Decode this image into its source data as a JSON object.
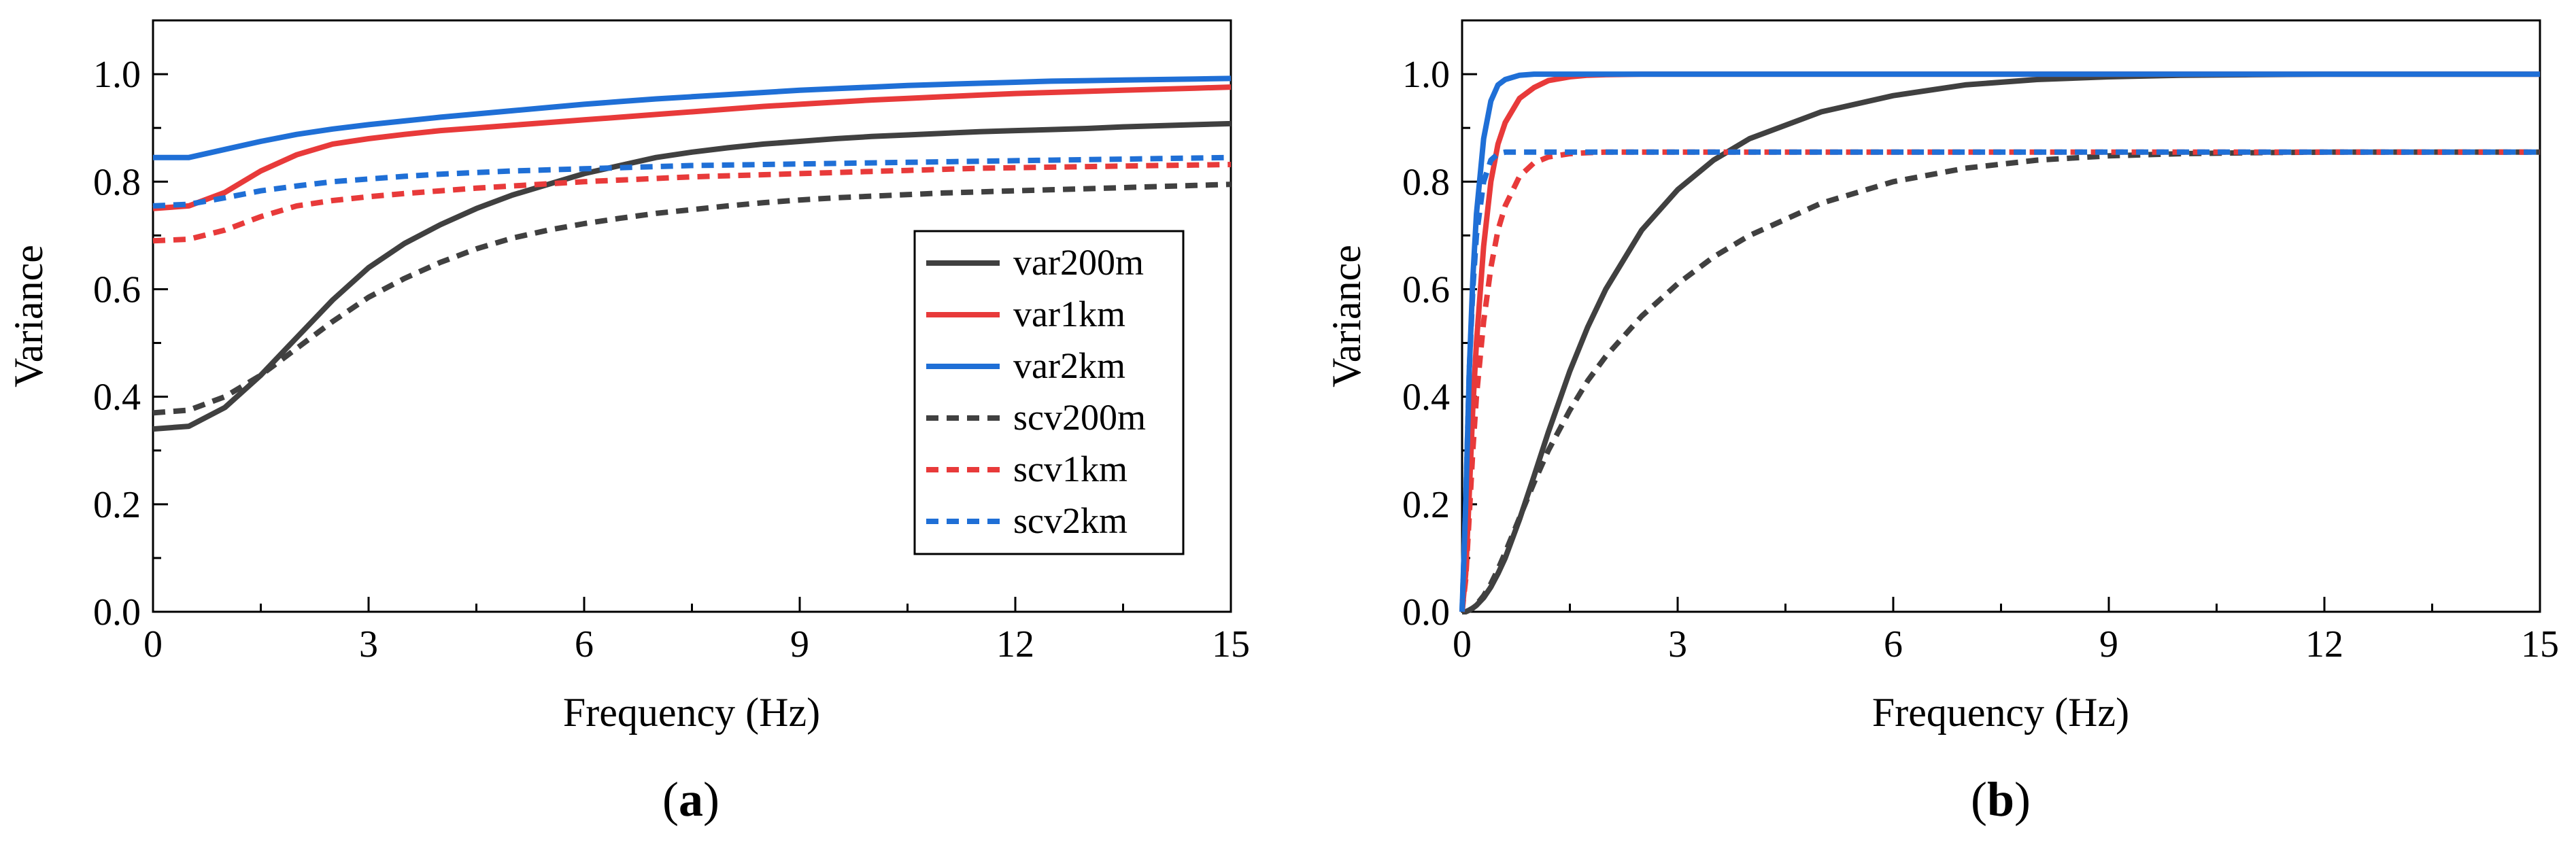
{
  "chart_data": [
    {
      "type": "line",
      "panel": "a",
      "caption_open": "(",
      "caption_label": "a",
      "caption_close": ")",
      "xlabel": "Frequency (Hz)",
      "ylabel": "Variance",
      "xlim": [
        0,
        15
      ],
      "ylim": [
        0,
        1.1
      ],
      "xticks": [
        0,
        3,
        6,
        9,
        12,
        15
      ],
      "xtick_labels": [
        "0",
        "3",
        "6",
        "9",
        "12",
        "15"
      ],
      "yticks": [
        0.0,
        0.2,
        0.4,
        0.6,
        0.8,
        1.0
      ],
      "ytick_labels": [
        "0.0",
        "0.2",
        "0.4",
        "0.6",
        "0.8",
        "1.0"
      ],
      "grid": false,
      "legend_position": "right",
      "x": [
        0,
        0.5,
        1,
        1.5,
        2,
        2.5,
        3,
        3.5,
        4,
        4.5,
        5,
        5.5,
        6,
        6.5,
        7,
        7.5,
        8,
        8.5,
        9,
        9.5,
        10,
        10.5,
        11,
        11.5,
        12,
        12.5,
        13,
        13.5,
        14,
        14.5,
        15
      ],
      "series": [
        {
          "name": "var200m",
          "color": "#404040",
          "dash": "solid",
          "values": [
            0.34,
            0.345,
            0.38,
            0.44,
            0.51,
            0.58,
            0.64,
            0.685,
            0.72,
            0.75,
            0.775,
            0.795,
            0.815,
            0.83,
            0.845,
            0.855,
            0.863,
            0.87,
            0.875,
            0.88,
            0.884,
            0.887,
            0.89,
            0.893,
            0.895,
            0.897,
            0.899,
            0.902,
            0.904,
            0.906,
            0.908
          ]
        },
        {
          "name": "var1km",
          "color": "#e83a3a",
          "dash": "solid",
          "values": [
            0.75,
            0.755,
            0.78,
            0.82,
            0.85,
            0.87,
            0.88,
            0.888,
            0.895,
            0.9,
            0.905,
            0.91,
            0.915,
            0.92,
            0.925,
            0.93,
            0.935,
            0.94,
            0.944,
            0.948,
            0.952,
            0.955,
            0.958,
            0.961,
            0.964,
            0.966,
            0.968,
            0.97,
            0.972,
            0.974,
            0.976
          ]
        },
        {
          "name": "var2km",
          "color": "#1f6fd6",
          "dash": "solid",
          "values": [
            0.845,
            0.845,
            0.86,
            0.875,
            0.888,
            0.898,
            0.906,
            0.913,
            0.92,
            0.926,
            0.932,
            0.938,
            0.944,
            0.949,
            0.954,
            0.958,
            0.962,
            0.966,
            0.97,
            0.973,
            0.976,
            0.979,
            0.981,
            0.983,
            0.985,
            0.987,
            0.988,
            0.989,
            0.99,
            0.991,
            0.992
          ]
        },
        {
          "name": "scv200m",
          "color": "#404040",
          "dash": "dash",
          "values": [
            0.37,
            0.375,
            0.4,
            0.44,
            0.49,
            0.54,
            0.585,
            0.62,
            0.65,
            0.675,
            0.695,
            0.71,
            0.722,
            0.732,
            0.741,
            0.748,
            0.755,
            0.761,
            0.766,
            0.77,
            0.773,
            0.776,
            0.779,
            0.781,
            0.783,
            0.785,
            0.787,
            0.789,
            0.791,
            0.793,
            0.795
          ]
        },
        {
          "name": "scv1km",
          "color": "#e83a3a",
          "dash": "dash",
          "values": [
            0.69,
            0.693,
            0.71,
            0.735,
            0.755,
            0.765,
            0.772,
            0.778,
            0.783,
            0.788,
            0.792,
            0.796,
            0.8,
            0.803,
            0.806,
            0.809,
            0.811,
            0.813,
            0.815,
            0.817,
            0.819,
            0.821,
            0.823,
            0.825,
            0.826,
            0.827,
            0.828,
            0.829,
            0.83,
            0.831,
            0.832
          ]
        },
        {
          "name": "scv2km",
          "color": "#1f6fd6",
          "dash": "dash",
          "values": [
            0.755,
            0.758,
            0.77,
            0.783,
            0.792,
            0.8,
            0.805,
            0.81,
            0.814,
            0.817,
            0.82,
            0.822,
            0.824,
            0.826,
            0.828,
            0.83,
            0.831,
            0.832,
            0.833,
            0.834,
            0.835,
            0.836,
            0.837,
            0.838,
            0.839,
            0.84,
            0.841,
            0.842,
            0.843,
            0.844,
            0.845
          ]
        }
      ]
    },
    {
      "type": "line",
      "panel": "b",
      "caption_open": "(",
      "caption_label": "b",
      "caption_close": ")",
      "xlabel": "Frequency (Hz)",
      "ylabel": "Variance",
      "xlim": [
        0,
        15
      ],
      "ylim": [
        0,
        1.1
      ],
      "xticks": [
        0,
        3,
        6,
        9,
        12,
        15
      ],
      "xtick_labels": [
        "0",
        "3",
        "6",
        "9",
        "12",
        "15"
      ],
      "yticks": [
        0.0,
        0.2,
        0.4,
        0.6,
        0.8,
        1.0
      ],
      "ytick_labels": [
        "0.0",
        "0.2",
        "0.4",
        "0.6",
        "0.8",
        "1.0"
      ],
      "grid": false,
      "x": [
        0,
        0.05,
        0.1,
        0.15,
        0.2,
        0.3,
        0.4,
        0.5,
        0.6,
        0.8,
        1,
        1.2,
        1.5,
        1.75,
        2,
        2.5,
        3,
        3.5,
        4,
        5,
        6,
        7,
        8,
        9,
        10,
        11,
        12,
        13,
        14,
        15
      ],
      "series": [
        {
          "name": "var200m",
          "color": "#404040",
          "dash": "solid",
          "values": [
            0,
            0.0,
            0.003,
            0.007,
            0.012,
            0.026,
            0.046,
            0.071,
            0.1,
            0.172,
            0.252,
            0.334,
            0.448,
            0.53,
            0.6,
            0.71,
            0.785,
            0.84,
            0.88,
            0.93,
            0.96,
            0.98,
            0.99,
            0.995,
            0.998,
            0.999,
            1.0,
            1.0,
            1.0,
            1.0
          ]
        },
        {
          "name": "var1km",
          "color": "#e83a3a",
          "dash": "solid",
          "values": [
            0,
            0.07,
            0.22,
            0.38,
            0.5,
            0.68,
            0.8,
            0.87,
            0.91,
            0.955,
            0.975,
            0.988,
            0.995,
            0.998,
            0.999,
            1.0,
            1.0,
            1.0,
            1.0,
            1.0,
            1.0,
            1.0,
            1.0,
            1.0,
            1.0,
            1.0,
            1.0,
            1.0,
            1.0,
            1.0
          ]
        },
        {
          "name": "var2km",
          "color": "#1f6fd6",
          "dash": "solid",
          "values": [
            0,
            0.2,
            0.45,
            0.62,
            0.74,
            0.88,
            0.95,
            0.98,
            0.99,
            0.998,
            1.0,
            1.0,
            1.0,
            1.0,
            1.0,
            1.0,
            1.0,
            1.0,
            1.0,
            1.0,
            1.0,
            1.0,
            1.0,
            1.0,
            1.0,
            1.0,
            1.0,
            1.0,
            1.0,
            1.0
          ]
        },
        {
          "name": "scv200m",
          "color": "#404040",
          "dash": "dash",
          "values": [
            0,
            0.0,
            0.003,
            0.007,
            0.013,
            0.03,
            0.052,
            0.079,
            0.11,
            0.175,
            0.24,
            0.3,
            0.375,
            0.43,
            0.475,
            0.55,
            0.61,
            0.66,
            0.7,
            0.76,
            0.8,
            0.825,
            0.84,
            0.848,
            0.852,
            0.854,
            0.855,
            0.855,
            0.855,
            0.855
          ]
        },
        {
          "name": "scv1km",
          "color": "#e83a3a",
          "dash": "dash",
          "values": [
            0,
            0.06,
            0.18,
            0.3,
            0.4,
            0.54,
            0.64,
            0.71,
            0.755,
            0.81,
            0.835,
            0.846,
            0.852,
            0.854,
            0.855,
            0.855,
            0.855,
            0.855,
            0.855,
            0.855,
            0.855,
            0.855,
            0.855,
            0.855,
            0.855,
            0.855,
            0.855,
            0.855,
            0.855,
            0.855
          ]
        },
        {
          "name": "scv2km",
          "color": "#1f6fd6",
          "dash": "dash",
          "values": [
            0,
            0.2,
            0.45,
            0.6,
            0.7,
            0.8,
            0.84,
            0.852,
            0.855,
            0.855,
            0.855,
            0.855,
            0.855,
            0.855,
            0.855,
            0.855,
            0.855,
            0.855,
            0.855,
            0.855,
            0.855,
            0.855,
            0.855,
            0.855,
            0.855,
            0.855,
            0.855,
            0.855,
            0.855,
            0.855
          ]
        }
      ]
    }
  ]
}
